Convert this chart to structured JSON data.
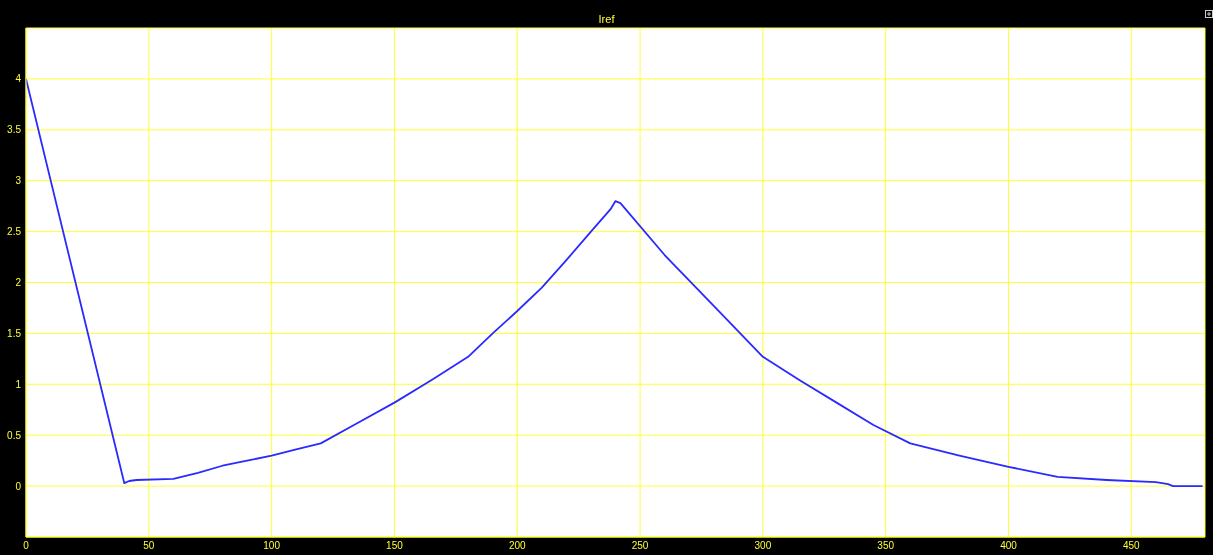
{
  "chart_data": {
    "type": "line",
    "title": "Iref",
    "x": [
      0,
      40,
      42,
      45,
      60,
      70,
      80,
      90,
      100,
      110,
      120,
      135,
      150,
      165,
      180,
      190,
      200,
      210,
      220,
      230,
      238,
      240,
      242,
      260,
      280,
      300,
      315,
      330,
      345,
      360,
      380,
      400,
      420,
      440,
      460,
      465,
      467,
      479
    ],
    "series": [
      {
        "color": "#2a2aff",
        "values": [
          4,
          0.03,
          0.05,
          0.06,
          0.07,
          0.13,
          0.2,
          0.25,
          0.3,
          0.36,
          0.42,
          0.62,
          0.82,
          1.04,
          1.27,
          1.5,
          1.72,
          1.95,
          2.22,
          2.5,
          2.72,
          2.8,
          2.78,
          2.27,
          1.77,
          1.27,
          1.04,
          0.82,
          0.6,
          0.42,
          0.3,
          0.19,
          0.09,
          0.06,
          0.04,
          0.02,
          0,
          0
        ]
      }
    ],
    "xlim": [
      0,
      480
    ],
    "xticks": [
      0,
      50,
      100,
      150,
      200,
      250,
      300,
      350,
      400,
      450
    ],
    "ylim": [
      -0.5,
      4.5
    ],
    "yticks": [
      0,
      0.5,
      1,
      1.5,
      2,
      2.5,
      3,
      3.5,
      4
    ],
    "grid": true,
    "legend": false,
    "marker": "none",
    "line_style": "solid"
  }
}
